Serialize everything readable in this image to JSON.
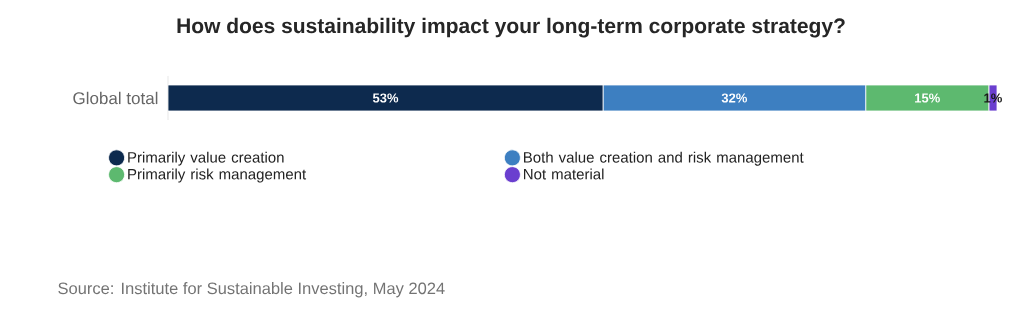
{
  "chart_data": {
    "type": "bar",
    "title": "How does sustainability impact your long-term corporate strategy?",
    "orientation": "horizontal",
    "stacked": true,
    "legend": "bottom",
    "categories": [
      "Global total"
    ],
    "series": [
      {
        "name": "Primarily value creation",
        "color": "#0d2a4e",
        "values": [
          53
        ],
        "value_labels": [
          "53%"
        ]
      },
      {
        "name": "Both value creation and risk management",
        "color": "#3d7fc1",
        "values": [
          32
        ],
        "value_labels": [
          "32%"
        ]
      },
      {
        "name": "Primarily risk management",
        "color": "#5db96f",
        "values": [
          15
        ],
        "value_labels": [
          "15%"
        ]
      },
      {
        "name": "Not material",
        "color": "#6a3fcf",
        "values": [
          1
        ],
        "value_labels": [
          "1%"
        ]
      }
    ],
    "annotations": [
      "Source: Institute for Sustainable Investing, May 2024"
    ]
  }
}
